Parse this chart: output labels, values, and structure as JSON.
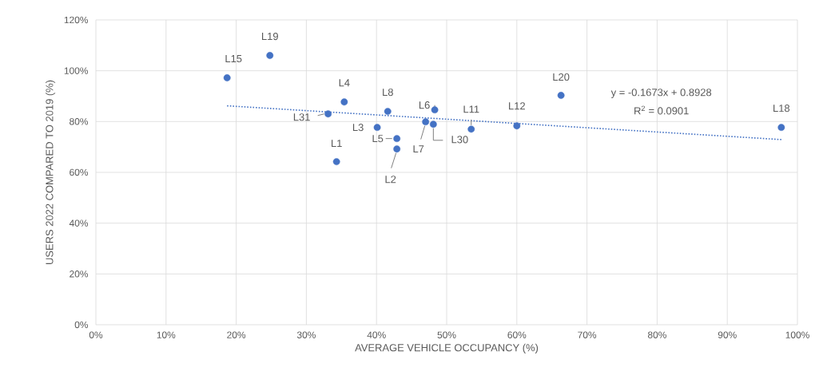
{
  "chart_data": {
    "type": "scatter",
    "xlabel": "AVERAGE VEHICLE OCCUPANCY (%)",
    "ylabel": "USERS 2022 COMPARED TO 2019 (%)",
    "xlim": [
      0,
      100
    ],
    "ylim": [
      0,
      120
    ],
    "xticks": [
      {
        "value": 0,
        "label": "0%"
      },
      {
        "value": 10,
        "label": "10%"
      },
      {
        "value": 20,
        "label": "20%"
      },
      {
        "value": 30,
        "label": "30%"
      },
      {
        "value": 40,
        "label": "40%"
      },
      {
        "value": 50,
        "label": "50%"
      },
      {
        "value": 60,
        "label": "60%"
      },
      {
        "value": 70,
        "label": "70%"
      },
      {
        "value": 80,
        "label": "80%"
      },
      {
        "value": 90,
        "label": "90%"
      },
      {
        "value": 100,
        "label": "100%"
      }
    ],
    "yticks": [
      {
        "value": 0,
        "label": "0%"
      },
      {
        "value": 20,
        "label": "20%"
      },
      {
        "value": 40,
        "label": "40%"
      },
      {
        "value": 60,
        "label": "60%"
      },
      {
        "value": 80,
        "label": "80%"
      },
      {
        "value": 100,
        "label": "100%"
      },
      {
        "value": 120,
        "label": "120%"
      }
    ],
    "grid": true,
    "marker": "circle",
    "series": [
      {
        "color": "#4472c4",
        "x": [
          18.7,
          24.8,
          35.4,
          33.1,
          34.3,
          41.6,
          40.1,
          42.9,
          42.9,
          48.3,
          47.0,
          48.1,
          53.5,
          60.0,
          66.3,
          97.7
        ],
        "values": [
          97.2,
          106.0,
          87.7,
          83.0,
          64.2,
          84.0,
          77.7,
          73.3,
          69.2,
          84.6,
          79.9,
          78.9,
          77.0,
          78.3,
          90.3,
          77.7
        ]
      },
      {
        "type": "line",
        "color": "#4472c4",
        "line_style": "dotted",
        "marker": "none",
        "x": [
          18.7,
          97.7
        ],
        "values": [
          86.2,
          72.9
        ]
      }
    ],
    "annotations": [
      {
        "text": "L15",
        "x": 18.7,
        "y": 97.2
      },
      {
        "text": "L19",
        "x": 24.8,
        "y": 106.0
      },
      {
        "text": "L4",
        "x": 35.4,
        "y": 87.7
      },
      {
        "text": "L31",
        "x": 33.1,
        "y": 83.0
      },
      {
        "text": "L1",
        "x": 34.3,
        "y": 64.2
      },
      {
        "text": "L8",
        "x": 41.6,
        "y": 84.0
      },
      {
        "text": "L3",
        "x": 40.1,
        "y": 77.7
      },
      {
        "text": "L5",
        "x": 42.9,
        "y": 73.3
      },
      {
        "text": "L2",
        "x": 42.9,
        "y": 69.2
      },
      {
        "text": "L6",
        "x": 48.3,
        "y": 84.6
      },
      {
        "text": "L7",
        "x": 47.0,
        "y": 79.9
      },
      {
        "text": "L30",
        "x": 48.1,
        "y": 78.9
      },
      {
        "text": "L11",
        "x": 53.5,
        "y": 77.0
      },
      {
        "text": "L12",
        "x": 60.0,
        "y": 78.3
      },
      {
        "text": "L20",
        "x": 66.3,
        "y": 90.3
      },
      {
        "text": "L18",
        "x": 97.7,
        "y": 77.7
      },
      "y = -0.1673x + 0.8928",
      "R$^{2}$ = 0.0901"
    ]
  }
}
